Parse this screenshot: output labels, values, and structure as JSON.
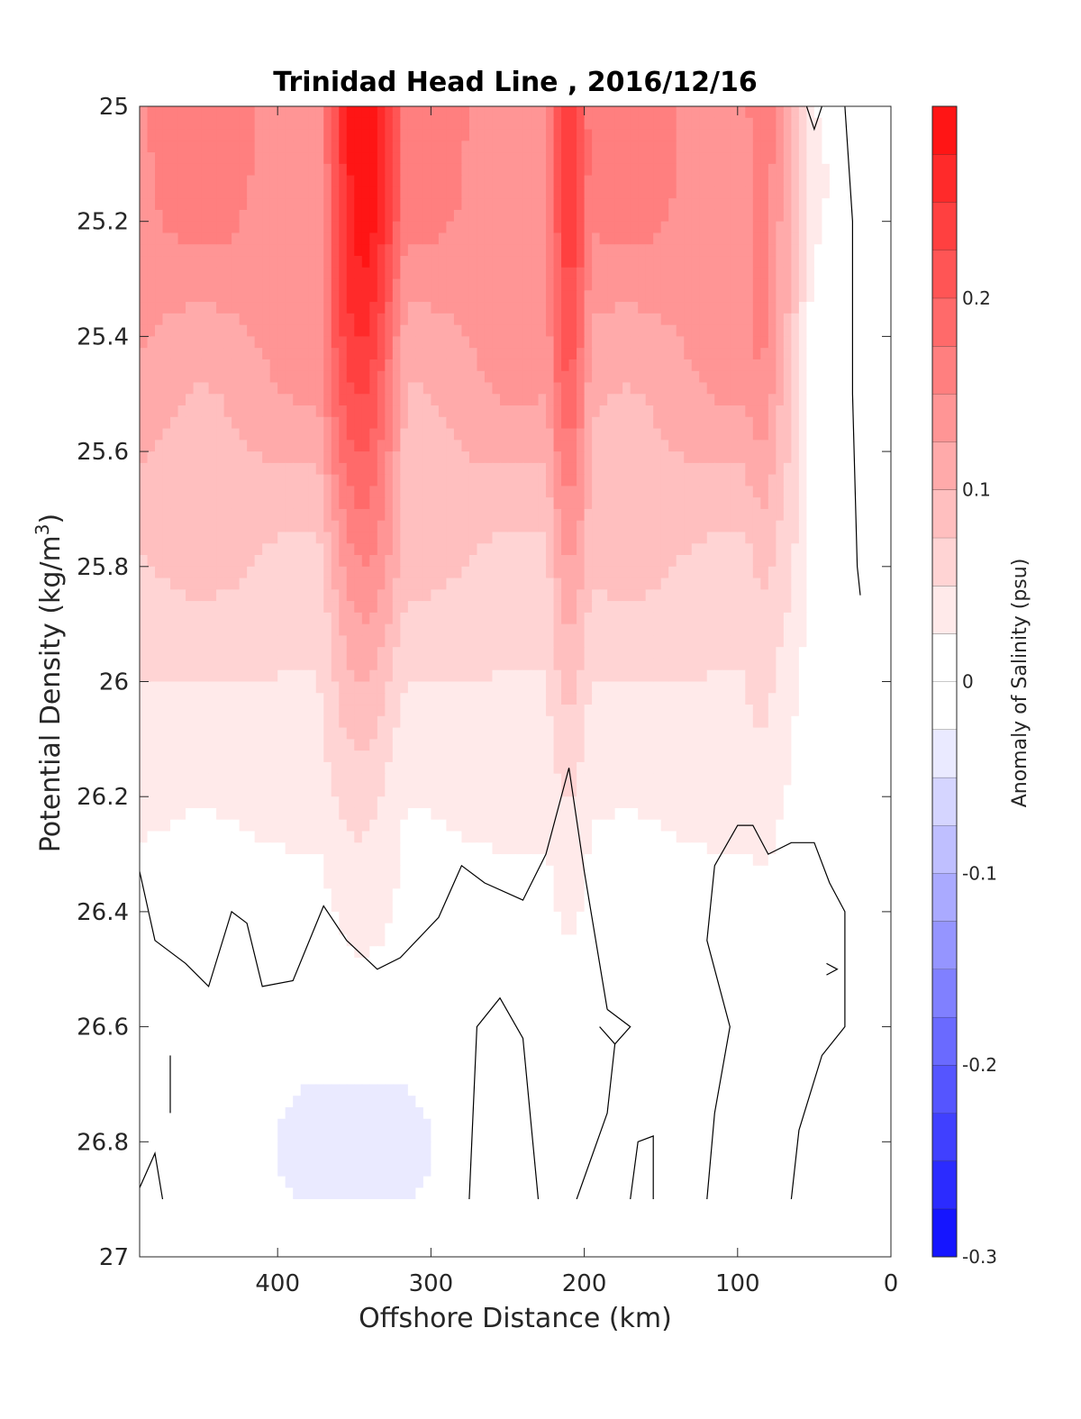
{
  "chart_data": {
    "type": "contour",
    "title": "Trinidad Head Line , 2016/12/16",
    "xlabel": "Offshore Distance (km)",
    "ylabel_main": "Potential Density (kg/m",
    "ylabel_sup": "3",
    "ylabel_tail": ")",
    "colorbar_label": "Anomaly of Salinity (psu)",
    "xlim": [
      490,
      0
    ],
    "x_reversed": true,
    "ylim": [
      25,
      27
    ],
    "y_reversed": true,
    "xticks": [
      400,
      300,
      200,
      100,
      0
    ],
    "xtick_labels": [
      "400",
      "300",
      "200",
      "100",
      "0"
    ],
    "yticks": [
      25,
      25.2,
      25.4,
      25.6,
      25.8,
      26,
      26.2,
      26.4,
      26.6,
      26.8,
      27
    ],
    "ytick_labels": [
      "25",
      "25.2",
      "25.4",
      "25.6",
      "25.8",
      "26",
      "26.2",
      "26.4",
      "26.6",
      "26.8",
      "27"
    ],
    "colorbar_limits": [
      -0.3,
      0.3
    ],
    "colorbar_ticks": [
      0.2,
      0.1,
      0,
      -0.1,
      -0.2,
      -0.3
    ],
    "colorbar_tick_labels": [
      "0.2",
      "0.1",
      "0",
      "-0.1",
      "-0.2",
      "-0.3"
    ],
    "contour_interval": 0.025,
    "zero_contour_color": "#000000",
    "positive_color": "#ff0000",
    "negative_color": "#0000ff",
    "data_bottom_density": 26.9,
    "grid": false,
    "surface_maxima_x": [
      345,
      210,
      85
    ],
    "surface_max_values": [
      0.3,
      0.25,
      0.175
    ],
    "near_shore_value": 0,
    "deep_minimum": {
      "x": 350,
      "y": 26.8,
      "value": -0.05
    }
  }
}
